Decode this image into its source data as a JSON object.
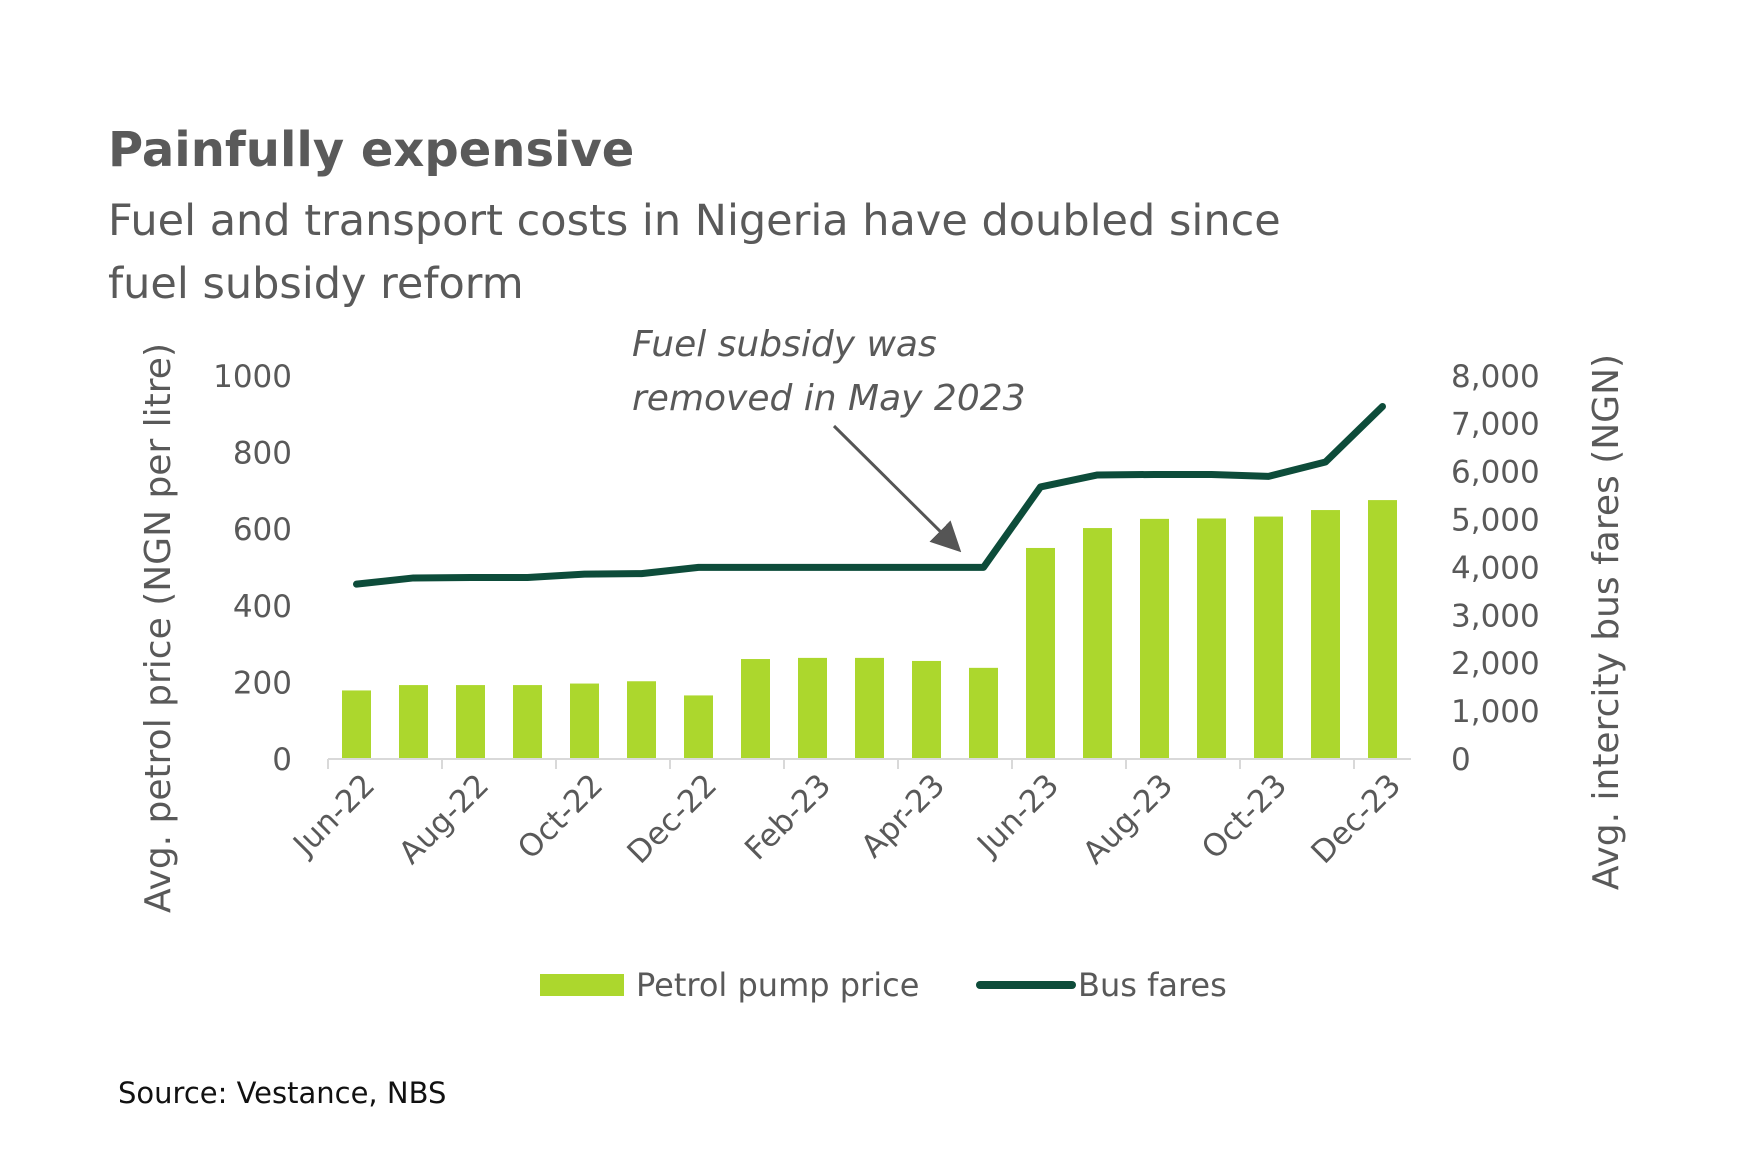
{
  "chart_data": {
    "type": "bar",
    "title": "Painfully expensive",
    "subtitle": "Fuel and transport costs in Nigeria have doubled since fuel subsidy reform",
    "categories": [
      "Jun-22",
      "Jul-22",
      "Aug-22",
      "Sep-22",
      "Oct-22",
      "Nov-22",
      "Dec-22",
      "Jan-23",
      "Feb-23",
      "Mar-23",
      "Apr-23",
      "May-23",
      "Jun-23",
      "Jul-23",
      "Aug-23",
      "Sep-23",
      "Oct-23",
      "Nov-23",
      "Dec-23"
    ],
    "xtick_labels": [
      "Jun-22",
      "Aug-22",
      "Oct-22",
      "Dec-22",
      "Feb-23",
      "Apr-23",
      "Jun-23",
      "Aug-23",
      "Oct-23",
      "Dec-23"
    ],
    "series": [
      {
        "name": "Petrol pump price",
        "type": "bar",
        "axis": "left",
        "color": "#acd72d",
        "values": [
          179,
          193,
          193,
          193,
          197,
          203,
          166,
          261,
          264,
          264,
          256,
          238,
          551,
          603,
          627,
          628,
          633,
          650,
          676
        ]
      },
      {
        "name": "Bus fares",
        "type": "line",
        "axis": "right",
        "color": "#0d4c3a",
        "values": [
          3650,
          3780,
          3790,
          3790,
          3860,
          3870,
          4000,
          4000,
          4000,
          4000,
          4000,
          4000,
          5680,
          5930,
          5940,
          5940,
          5900,
          6200,
          7360
        ]
      }
    ],
    "ylabel": "Avg. petrol price (NGN per litre)",
    "ylabel_right": "Avg. intercity bus fares (NGN)",
    "ylim": [
      0,
      1000
    ],
    "ylim_right": [
      0,
      8000
    ],
    "yticks": [
      0,
      200,
      400,
      600,
      800,
      1000
    ],
    "yticks_labels": [
      "0",
      "200",
      "400",
      "600",
      "800",
      "1000"
    ],
    "yticks_right_labels": [
      "0",
      "1,000",
      "2,000",
      "3,000",
      "4,000",
      "5,000",
      "6,000",
      "7,000",
      "8,000"
    ],
    "annotation": {
      "line1": "Fuel subsidy was",
      "line2": "removed in May 2023",
      "points_to": "May-23"
    },
    "legend": {
      "position": "bottom-center",
      "items": [
        "Petrol pump price",
        "Bus fares"
      ]
    },
    "grid": false
  },
  "source": "Source: Vestance, NBS",
  "colors": {
    "bar": "#acd72d",
    "line": "#0d4c3a",
    "text": "#595959",
    "axis": "#d9d9d9",
    "arrow": "#555555"
  }
}
